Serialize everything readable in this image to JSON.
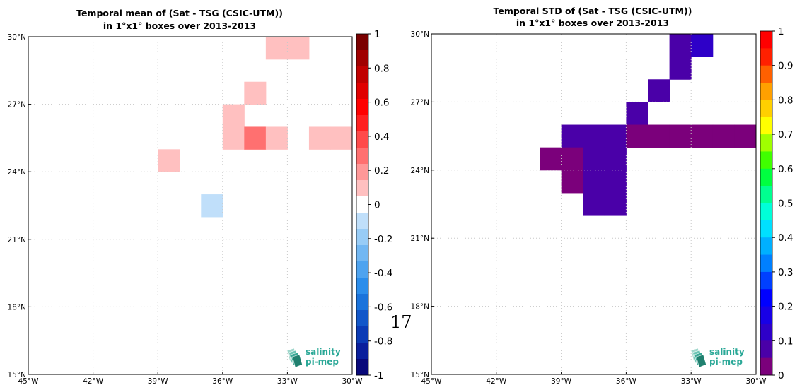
{
  "page_number": "17",
  "logo": {
    "line1": "salinity",
    "line2": "pi-mep",
    "color": "#2aa897"
  },
  "chart_data": [
    {
      "type": "heatmap",
      "title": [
        "Temporal mean of (Sat - TSG (CSIC-UTM))",
        "in 1°x1° boxes over 2013-2013"
      ],
      "xlim": [
        -45,
        -30
      ],
      "ylim": [
        15,
        30
      ],
      "xticks": [
        -45,
        -42,
        -39,
        -36,
        -33,
        -30
      ],
      "xtick_labels": [
        "45°W",
        "42°W",
        "39°W",
        "36°W",
        "33°W",
        "30°W"
      ],
      "yticks": [
        15,
        18,
        21,
        24,
        27,
        30
      ],
      "ytick_labels": [
        "15°N",
        "18°N",
        "21°N",
        "24°N",
        "27°N",
        "30°N"
      ],
      "grid": true,
      "colorbar": {
        "range": [
          -1,
          1
        ],
        "levels": 21,
        "ticks": [
          1,
          0.8,
          0.6,
          0.4,
          0.2,
          0,
          -0.2,
          -0.4,
          -0.6,
          -0.8,
          -1
        ],
        "tick_labels": [
          "1",
          "0.8",
          "0.6",
          "0.4",
          "0.2",
          "0",
          "-0.2",
          "-0.4",
          "-0.6",
          "-0.8",
          "-1"
        ]
      },
      "cells": [
        {
          "lon": -34,
          "lat": 29,
          "value": 0.1
        },
        {
          "lon": -33,
          "lat": 29,
          "value": 0.1
        },
        {
          "lon": -35,
          "lat": 27,
          "value": 0.1
        },
        {
          "lon": -36,
          "lat": 26,
          "value": 0.1
        },
        {
          "lon": -36,
          "lat": 25,
          "value": 0.1
        },
        {
          "lon": -35,
          "lat": 25,
          "value": 0.25
        },
        {
          "lon": -34,
          "lat": 25,
          "value": 0.1
        },
        {
          "lon": -32,
          "lat": 25,
          "value": 0.1
        },
        {
          "lon": -31,
          "lat": 25,
          "value": 0.1
        },
        {
          "lon": -39,
          "lat": 24,
          "value": 0.1
        },
        {
          "lon": -37,
          "lat": 22,
          "value": -0.1
        }
      ]
    },
    {
      "type": "heatmap",
      "title": [
        "Temporal STD of (Sat - TSG (CSIC-UTM))",
        "in 1°x1° boxes over 2013-2013"
      ],
      "xlim": [
        -45,
        -30
      ],
      "ylim": [
        15,
        30
      ],
      "xticks": [
        -45,
        -42,
        -39,
        -36,
        -33,
        -30
      ],
      "xtick_labels": [
        "45°W",
        "42°W",
        "39°W",
        "36°W",
        "33°W",
        "30°W"
      ],
      "yticks": [
        15,
        18,
        21,
        24,
        27,
        30
      ],
      "ytick_labels": [
        "15°N",
        "18°N",
        "21°N",
        "24°N",
        "27°N",
        "30°N"
      ],
      "grid": true,
      "colorbar": {
        "range": [
          0,
          1
        ],
        "levels": 20,
        "ticks": [
          1,
          0.9,
          0.8,
          0.7,
          0.6,
          0.5,
          0.4,
          0.3,
          0.2,
          0.1,
          0
        ],
        "tick_labels": [
          "1",
          "0.9",
          "0.8",
          "0.7",
          "0.6",
          "0.5",
          "0.4",
          "0.3",
          "0.2",
          "0.1",
          "0"
        ]
      },
      "cells": [
        {
          "lon": -34,
          "lat": 29,
          "value": 0.075
        },
        {
          "lon": -33,
          "lat": 29,
          "value": 0.125
        },
        {
          "lon": -34,
          "lat": 28,
          "value": 0.075
        },
        {
          "lon": -35,
          "lat": 27,
          "value": 0.075
        },
        {
          "lon": -36,
          "lat": 26,
          "value": 0.075
        },
        {
          "lon": -39,
          "lat": 25,
          "value": 0.075
        },
        {
          "lon": -38,
          "lat": 25,
          "value": 0.075
        },
        {
          "lon": -37,
          "lat": 25,
          "value": 0.075
        },
        {
          "lon": -36,
          "lat": 25,
          "value": 0.025
        },
        {
          "lon": -35,
          "lat": 25,
          "value": 0.025
        },
        {
          "lon": -34,
          "lat": 25,
          "value": 0.025
        },
        {
          "lon": -33,
          "lat": 25,
          "value": 0.025
        },
        {
          "lon": -32,
          "lat": 25,
          "value": 0.025
        },
        {
          "lon": -31,
          "lat": 25,
          "value": 0.025
        },
        {
          "lon": -40,
          "lat": 24,
          "value": 0.025
        },
        {
          "lon": -39,
          "lat": 24,
          "value": 0.025
        },
        {
          "lon": -38,
          "lat": 24,
          "value": 0.075
        },
        {
          "lon": -37,
          "lat": 24,
          "value": 0.075
        },
        {
          "lon": -39,
          "lat": 23,
          "value": 0.025
        },
        {
          "lon": -38,
          "lat": 23,
          "value": 0.075
        },
        {
          "lon": -37,
          "lat": 23,
          "value": 0.075
        },
        {
          "lon": -38,
          "lat": 22,
          "value": 0.075
        },
        {
          "lon": -37,
          "lat": 22,
          "value": 0.075
        }
      ]
    }
  ]
}
